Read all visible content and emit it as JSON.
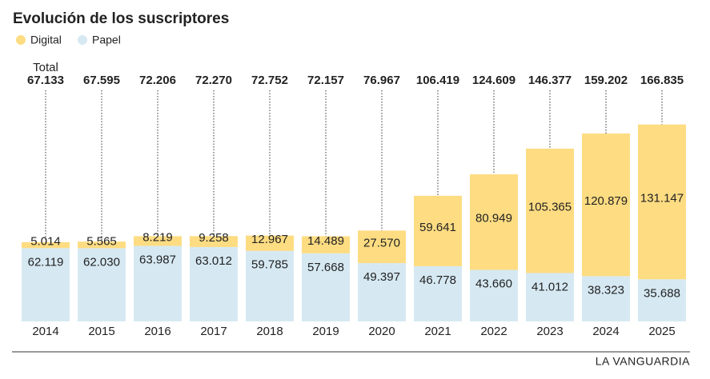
{
  "chart_data": {
    "type": "stacked-bar",
    "title": "Evolución de los suscriptores",
    "categories": [
      "2014",
      "2015",
      "2016",
      "2017",
      "2018",
      "2019",
      "2020",
      "2021",
      "2022",
      "2023",
      "2024",
      "2025"
    ],
    "series": [
      {
        "name": "Papel",
        "color": "#d6e9f3",
        "values": [
          62119,
          62030,
          63987,
          63012,
          59785,
          57668,
          49397,
          46778,
          43660,
          41012,
          38323,
          35688
        ],
        "value_labels": [
          "62.119",
          "62.030",
          "63.987",
          "63.012",
          "59.785",
          "57.668",
          "49.397",
          "46.778",
          "43.660",
          "41.012",
          "38.323",
          "35.688"
        ]
      },
      {
        "name": "Digital",
        "color": "#fddc82",
        "values": [
          5014,
          5565,
          8219,
          9258,
          12967,
          14489,
          27570,
          59641,
          80949,
          105365,
          120879,
          131147
        ],
        "value_labels": [
          "5.014",
          "5.565",
          "8.219",
          "9.258",
          "12.967",
          "14.489",
          "27.570",
          "59.641",
          "80.949",
          "105.365",
          "120.879",
          "131.147"
        ]
      }
    ],
    "totals": {
      "label": "Total",
      "values": [
        67133,
        67595,
        72206,
        72270,
        72752,
        72157,
        76967,
        106419,
        124609,
        146377,
        159202,
        166835
      ],
      "value_labels": [
        "67.133",
        "67.595",
        "72.206",
        "72.270",
        "72.752",
        "72.157",
        "76.967",
        "106.419",
        "124.609",
        "146.377",
        "159.202",
        "166.835"
      ]
    },
    "ylim": [
      0,
      170000
    ],
    "legend": "top-left",
    "source": "LA VANGUARDIA"
  }
}
